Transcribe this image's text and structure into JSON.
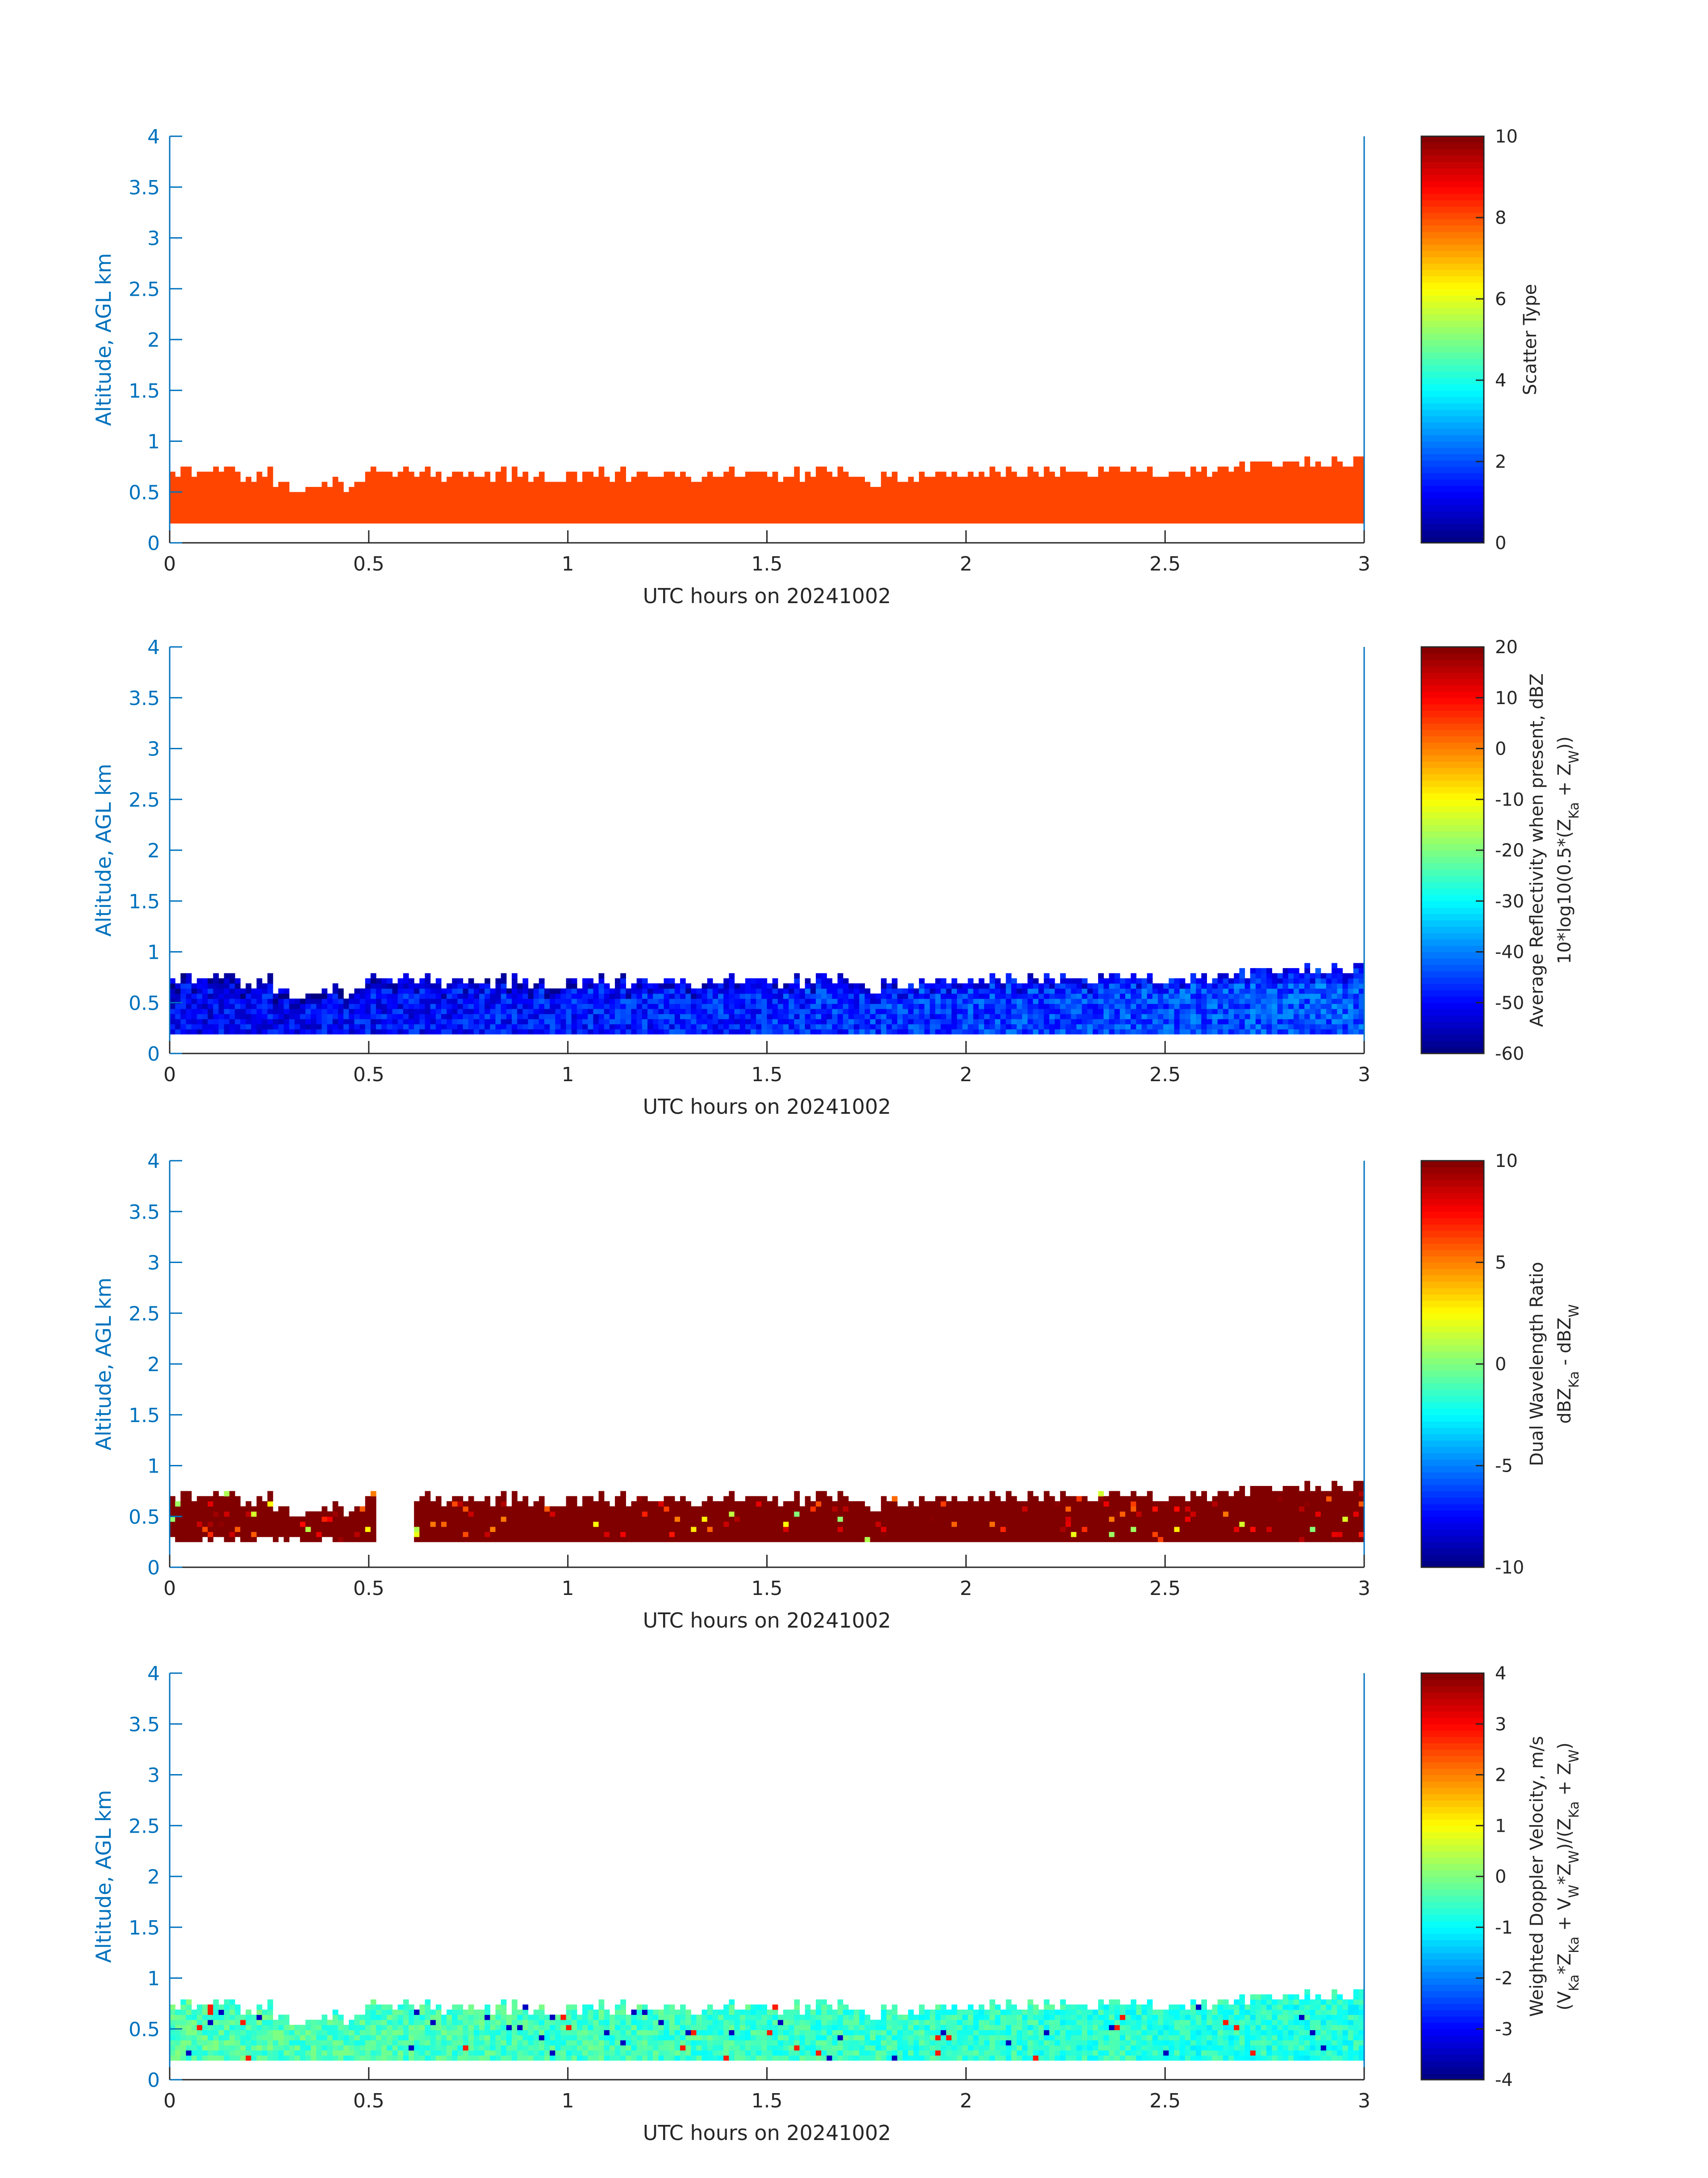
{
  "colors": {
    "axis": "#0072BD",
    "text": "#262626",
    "scatter_fill": "#FF4500"
  },
  "chart_data": [
    {
      "type": "heatmap",
      "xlabel": "UTC hours on 20241002",
      "ylabel": "Altitude, AGL km",
      "xlim": [
        0,
        3
      ],
      "ylim": [
        0,
        4
      ],
      "xticks": [
        "0",
        "0.5",
        "1",
        "1.5",
        "2",
        "2.5",
        "3"
      ],
      "yticks": [
        "0",
        "0.5",
        "1",
        "1.5",
        "2",
        "2.5",
        "3",
        "3.5",
        "4"
      ],
      "colormap": "jet",
      "colorbar": {
        "label_lines": [
          "Scatter Type"
        ],
        "range": [
          0,
          10
        ],
        "ticks": [
          "0",
          "2",
          "4",
          "6",
          "8",
          "10"
        ]
      },
      "field": "scatter",
      "cloud_base_km": 0.19,
      "constant_value": 8.3
    },
    {
      "type": "heatmap",
      "xlabel": "UTC hours on 20241002",
      "ylabel": "Altitude, AGL km",
      "xlim": [
        0,
        3
      ],
      "ylim": [
        0,
        4
      ],
      "xticks": [
        "0",
        "0.5",
        "1",
        "1.5",
        "2",
        "2.5",
        "3"
      ],
      "yticks": [
        "0",
        "0.5",
        "1",
        "1.5",
        "2",
        "2.5",
        "3",
        "3.5",
        "4"
      ],
      "colormap": "jet",
      "colorbar": {
        "label_lines": [
          "Average Reflectivity when present, dBZ",
          "10*log10(0.5*(Z_Ka + Z_W))"
        ],
        "range": [
          -60,
          20
        ],
        "ticks": [
          "-60",
          "-50",
          "-40",
          "-30",
          "-20",
          "-10",
          "0",
          "10",
          "20"
        ]
      },
      "field": "reflectivity",
      "cloud_base_km": 0.19,
      "typical_range_dBZ": [
        -55,
        -38
      ]
    },
    {
      "type": "heatmap",
      "xlabel": "UTC hours on 20241002",
      "ylabel": "Altitude, AGL km",
      "xlim": [
        0,
        3
      ],
      "ylim": [
        0,
        4
      ],
      "xticks": [
        "0",
        "0.5",
        "1",
        "1.5",
        "2",
        "2.5",
        "3"
      ],
      "yticks": [
        "0",
        "0.5",
        "1",
        "1.5",
        "2",
        "2.5",
        "3",
        "3.5",
        "4"
      ],
      "colormap": "jet",
      "colorbar": {
        "label_lines": [
          "Dual Wavelength Ratio",
          "dBZ_Ka - dBZ_W"
        ],
        "range": [
          -10,
          10
        ],
        "ticks": [
          "-10",
          "-5",
          "0",
          "5",
          "10"
        ]
      },
      "field": "dwr",
      "cloud_base_km": 0.25,
      "typical_value_dB": 10
    },
    {
      "type": "heatmap",
      "xlabel": "UTC hours on 20241002",
      "ylabel": "Altitude, AGL km",
      "xlim": [
        0,
        3
      ],
      "ylim": [
        0,
        4
      ],
      "xticks": [
        "0",
        "0.5",
        "1",
        "1.5",
        "2",
        "2.5",
        "3"
      ],
      "yticks": [
        "0",
        "0.5",
        "1",
        "1.5",
        "2",
        "2.5",
        "3",
        "3.5",
        "4"
      ],
      "colormap": "jet",
      "colorbar": {
        "label_lines": [
          "Weighted Doppler Velocity, m/s",
          "(V_Ka*Z_Ka + V_W*Z_W)/(Z_Ka + Z_W)"
        ],
        "range": [
          -4,
          4
        ],
        "ticks": [
          "-4",
          "-3",
          "-2",
          "-1",
          "0",
          "1",
          "2",
          "3",
          "4"
        ]
      },
      "field": "velocity",
      "cloud_base_km": 0.19,
      "typical_range_ms": [
        -1.2,
        0.3
      ]
    }
  ]
}
